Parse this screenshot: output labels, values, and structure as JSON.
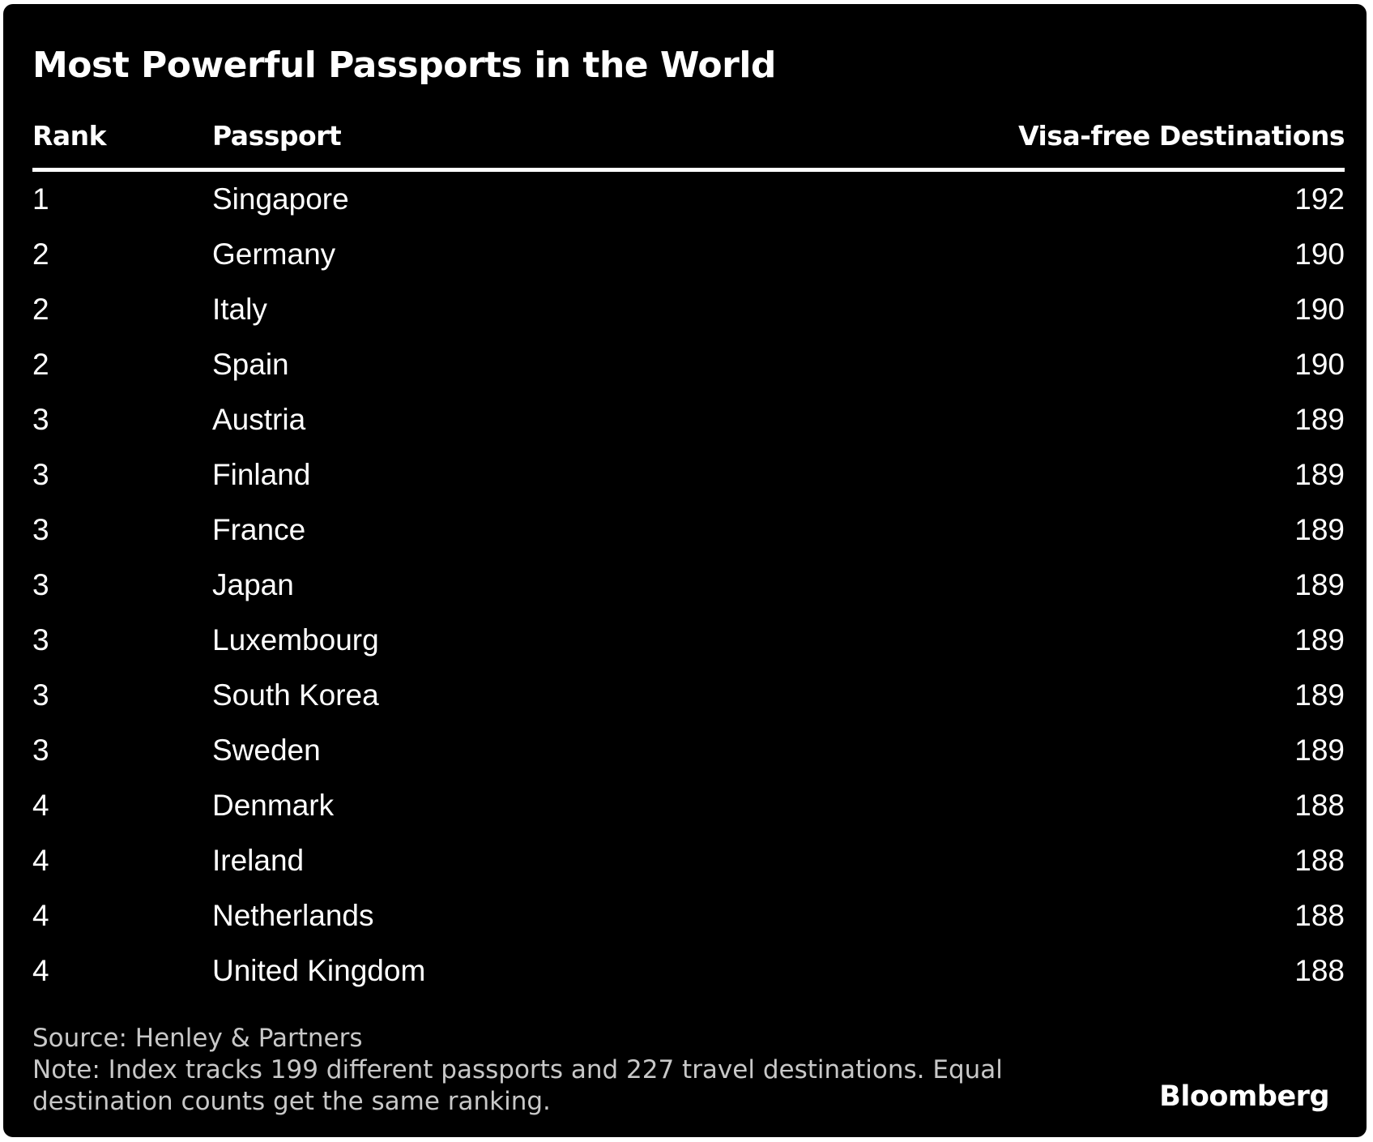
{
  "chart_data": {
    "type": "table",
    "title": "Most Powerful Passports in the World",
    "columns": [
      "Rank",
      "Passport",
      "Visa-free Destinations"
    ],
    "rows": [
      {
        "rank": "1",
        "passport": "Singapore",
        "visa_free": "192"
      },
      {
        "rank": "2",
        "passport": "Germany",
        "visa_free": "190"
      },
      {
        "rank": "2",
        "passport": "Italy",
        "visa_free": "190"
      },
      {
        "rank": "2",
        "passport": "Spain",
        "visa_free": "190"
      },
      {
        "rank": "3",
        "passport": "Austria",
        "visa_free": "189"
      },
      {
        "rank": "3",
        "passport": "Finland",
        "visa_free": "189"
      },
      {
        "rank": "3",
        "passport": "France",
        "visa_free": "189"
      },
      {
        "rank": "3",
        "passport": "Japan",
        "visa_free": "189"
      },
      {
        "rank": "3",
        "passport": "Luxembourg",
        "visa_free": "189"
      },
      {
        "rank": "3",
        "passport": "South Korea",
        "visa_free": "189"
      },
      {
        "rank": "3",
        "passport": "Sweden",
        "visa_free": "189"
      },
      {
        "rank": "4",
        "passport": "Denmark",
        "visa_free": "188"
      },
      {
        "rank": "4",
        "passport": "Ireland",
        "visa_free": "188"
      },
      {
        "rank": "4",
        "passport": "Netherlands",
        "visa_free": "188"
      },
      {
        "rank": "4",
        "passport": "United Kingdom",
        "visa_free": "188"
      }
    ],
    "source": "Source: Henley & Partners",
    "note": "Note: Index tracks 199 different passports and 227 travel destinations. Equal destination counts get the same ranking."
  },
  "brand": "Bloomberg",
  "colors": {
    "background": "#000000",
    "text": "#ffffff",
    "footer_text": "#c8c8c8"
  }
}
